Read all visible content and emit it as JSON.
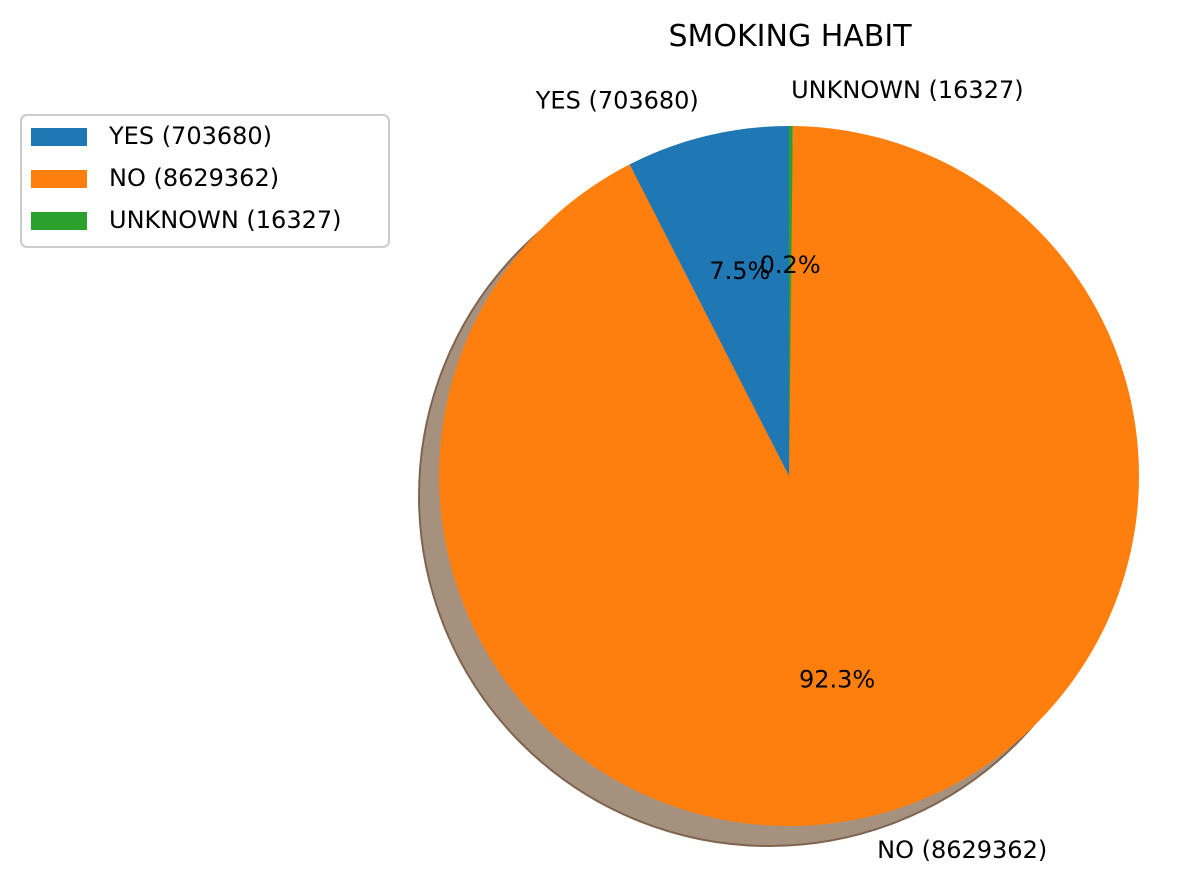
{
  "chart_data": {
    "type": "pie",
    "title": "SMOKING HABIT",
    "slices": [
      {
        "label": "YES (703680)",
        "value": 703680,
        "percent_label": "7.5%",
        "color": "#1f77b4"
      },
      {
        "label": "NO (8629362)",
        "value": 8629362,
        "percent_label": "92.3%",
        "color": "#ff7f0e"
      },
      {
        "label": "UNKNOWN (16327)",
        "value": 16327,
        "percent_label": "0.2%",
        "color": "#2ca02c"
      }
    ],
    "legend": {
      "position": "upper-left",
      "entries": [
        "YES (703680)",
        "NO (8629362)",
        "UNKNOWN (16327)"
      ]
    },
    "start_angle_degrees": 90,
    "direction": "counterclockwise",
    "shadow": true
  }
}
